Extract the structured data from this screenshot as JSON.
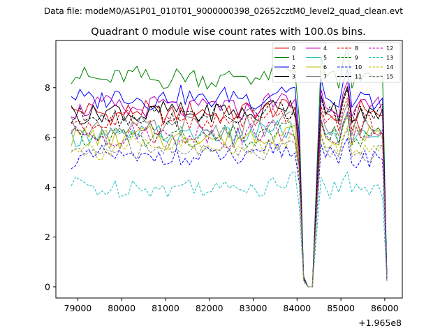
{
  "chart_data": {
    "type": "line",
    "suptitle": "Data file: modeM0/AS1P01_010T01_9000000398_02652cztM0_level2_quad_clean.evt",
    "title": "Quadrant 0 module wise count rates with 100.0s bins.",
    "xlabel": "",
    "ylabel": "",
    "x_offset_label": "+1.965e8",
    "xlim": [
      78500,
      86400
    ],
    "ylim": [
      -0.45,
      9.9
    ],
    "x_ticks": [
      79000,
      80000,
      81000,
      82000,
      83000,
      84000,
      85000,
      86000
    ],
    "x_tick_labels": [
      "79000",
      "80000",
      "81000",
      "82000",
      "83000",
      "84000",
      "85000",
      "86000"
    ],
    "y_ticks": [
      0,
      2,
      4,
      6,
      8
    ],
    "y_tick_labels": [
      "0",
      "2",
      "4",
      "6",
      "8"
    ],
    "x_start": 78850,
    "x_step": 100,
    "gap_start_index": 0,
    "gap_pattern": {
      "84050": 0.8,
      "84150": 0.25,
      "84250": 0.0,
      "84350": 0.0,
      "84450": 0.55,
      "84550": 1.1,
      "84650": 1.0,
      "84950": 0.95,
      "85050": 1.08,
      "85150": 1.15,
      "85250": 0.95,
      "86050": 0.22
    },
    "series": [
      {
        "name": "0",
        "color": "#e00000",
        "dash": "solid",
        "base": 7.0
      },
      {
        "name": "1",
        "color": "#008000",
        "dash": "solid",
        "base": 8.4
      },
      {
        "name": "2",
        "color": "#0000ff",
        "dash": "solid",
        "base": 7.6
      },
      {
        "name": "3",
        "color": "#000000",
        "dash": "solid",
        "base": 7.0
      },
      {
        "name": "4",
        "color": "#bf00bf",
        "dash": "solid",
        "base": 7.2
      },
      {
        "name": "5",
        "color": "#1fbfbf",
        "dash": "solid",
        "base": 6.1
      },
      {
        "name": "6",
        "color": "#bfbf00",
        "dash": "solid",
        "base": 6.0
      },
      {
        "name": "7",
        "color": "#808080",
        "dash": "solid",
        "base": 6.4
      },
      {
        "name": "8",
        "color": "#e00000",
        "dash": "dashed",
        "base": 6.6
      },
      {
        "name": "9",
        "color": "#008000",
        "dash": "dashed",
        "base": 6.0
      },
      {
        "name": "10",
        "color": "#0000ff",
        "dash": "dashed",
        "base": 5.2
      },
      {
        "name": "11",
        "color": "#000000",
        "dash": "dashed",
        "base": 6.9
      },
      {
        "name": "12",
        "color": "#bf00bf",
        "dash": "dashed",
        "base": 6.1
      },
      {
        "name": "13",
        "color": "#1fbfbf",
        "dash": "dashed",
        "base": 4.0
      },
      {
        "name": "14",
        "color": "#bfbf00",
        "dash": "dashed",
        "base": 5.6
      },
      {
        "name": "15",
        "color": "#808080",
        "dash": "dashed",
        "base": 5.5
      }
    ],
    "legend_position": "top-right",
    "legend_columns": 4,
    "grid": false
  }
}
